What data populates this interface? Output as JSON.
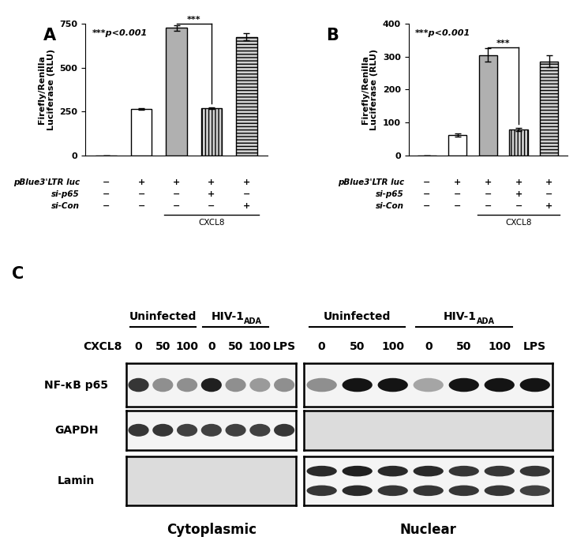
{
  "chart_data": [
    {
      "type": "bar",
      "panel": "A",
      "y_label": "Firefly/Renilla\nLuciferase (RLU)",
      "annotation": "***p<0.001",
      "categories": [
        null,
        null,
        null,
        null,
        null
      ],
      "values": [
        2,
        265,
        725,
        270,
        675
      ],
      "errors": [
        0,
        3,
        15,
        5,
        20
      ],
      "colors": [
        "#ffffff",
        "#ffffff",
        "#b0b0b0",
        "#d0d0d0",
        "#d0d0d0"
      ],
      "ylim": [
        0,
        750
      ],
      "yticks": [
        0,
        250,
        500,
        750
      ],
      "significance": {
        "between": [
          2,
          3
        ],
        "label": "***"
      },
      "conditions": [
        {
          "label": "pBlue3'LTR luc",
          "marks": [
            "−",
            "+",
            "+",
            "+",
            "+"
          ]
        },
        {
          "label": "si-p65",
          "marks": [
            "−",
            "−",
            "−",
            "+",
            "−"
          ]
        },
        {
          "label": "si-Con",
          "marks": [
            "−",
            "−",
            "−",
            "−",
            "+"
          ]
        }
      ],
      "group": {
        "label": "CXCL8",
        "span": [
          2,
          4
        ]
      }
    },
    {
      "type": "bar",
      "panel": "B",
      "y_label": "Firefly/Renilla\nLuciferase (RLU)",
      "annotation": "***p<0.001",
      "categories": [
        null,
        null,
        null,
        null,
        null
      ],
      "values": [
        1,
        62,
        305,
        80,
        285
      ],
      "errors": [
        0,
        5,
        20,
        5,
        18
      ],
      "colors": [
        "#ffffff",
        "#ffffff",
        "#b0b0b0",
        "#d0d0d0",
        "#d0d0d0"
      ],
      "ylim": [
        0,
        400
      ],
      "yticks": [
        0,
        100,
        200,
        300,
        400
      ],
      "significance": {
        "between": [
          2,
          3
        ],
        "label": "***"
      },
      "conditions": [
        {
          "label": "pBlue3'LTR luc",
          "marks": [
            "−",
            "+",
            "+",
            "+",
            "+"
          ]
        },
        {
          "label": "si-p65",
          "marks": [
            "−",
            "−",
            "−",
            "+",
            "−"
          ]
        },
        {
          "label": "si-Con",
          "marks": [
            "−",
            "−",
            "−",
            "−",
            "+"
          ]
        }
      ],
      "group": {
        "label": "CXCL8",
        "span": [
          2,
          4
        ]
      }
    }
  ],
  "blot": {
    "panel": "C",
    "treatment": "CXCL8",
    "lanes": [
      "0",
      "50",
      "100",
      "0",
      "50",
      "100",
      "LPS"
    ],
    "groups": [
      {
        "label": "Uninfected",
        "lanes": [
          0,
          2
        ]
      },
      {
        "label": "HIV-1",
        "subscript": "ADA",
        "lanes": [
          3,
          5
        ]
      }
    ],
    "rows": [
      "NF-κB p65",
      "GAPDH",
      "Lamin"
    ],
    "fractions": [
      {
        "label": "Cytoplasmic",
        "intensity": [
          [
            [
              0.85,
              0.45,
              0.45,
              0.95,
              0.45,
              0.4,
              0.45
            ]
          ],
          [
            [
              0.85,
              0.85,
              0.8,
              0.8,
              0.8,
              0.8,
              0.85
            ]
          ],
          [
            [
              0,
              0,
              0,
              0,
              0,
              0,
              0
            ]
          ]
        ]
      },
      {
        "label": "Nuclear",
        "intensity": [
          [
            [
              0.45,
              1.0,
              1.0,
              0.35,
              1.0,
              1.0,
              1.0
            ]
          ],
          [
            [
              0,
              0,
              0,
              0,
              0,
              0,
              0
            ]
          ],
          [
            [
              0.9,
              0.95,
              0.9,
              0.9,
              0.85,
              0.85,
              0.85
            ],
            [
              0.85,
              0.9,
              0.85,
              0.85,
              0.85,
              0.85,
              0.8
            ]
          ]
        ]
      }
    ]
  }
}
